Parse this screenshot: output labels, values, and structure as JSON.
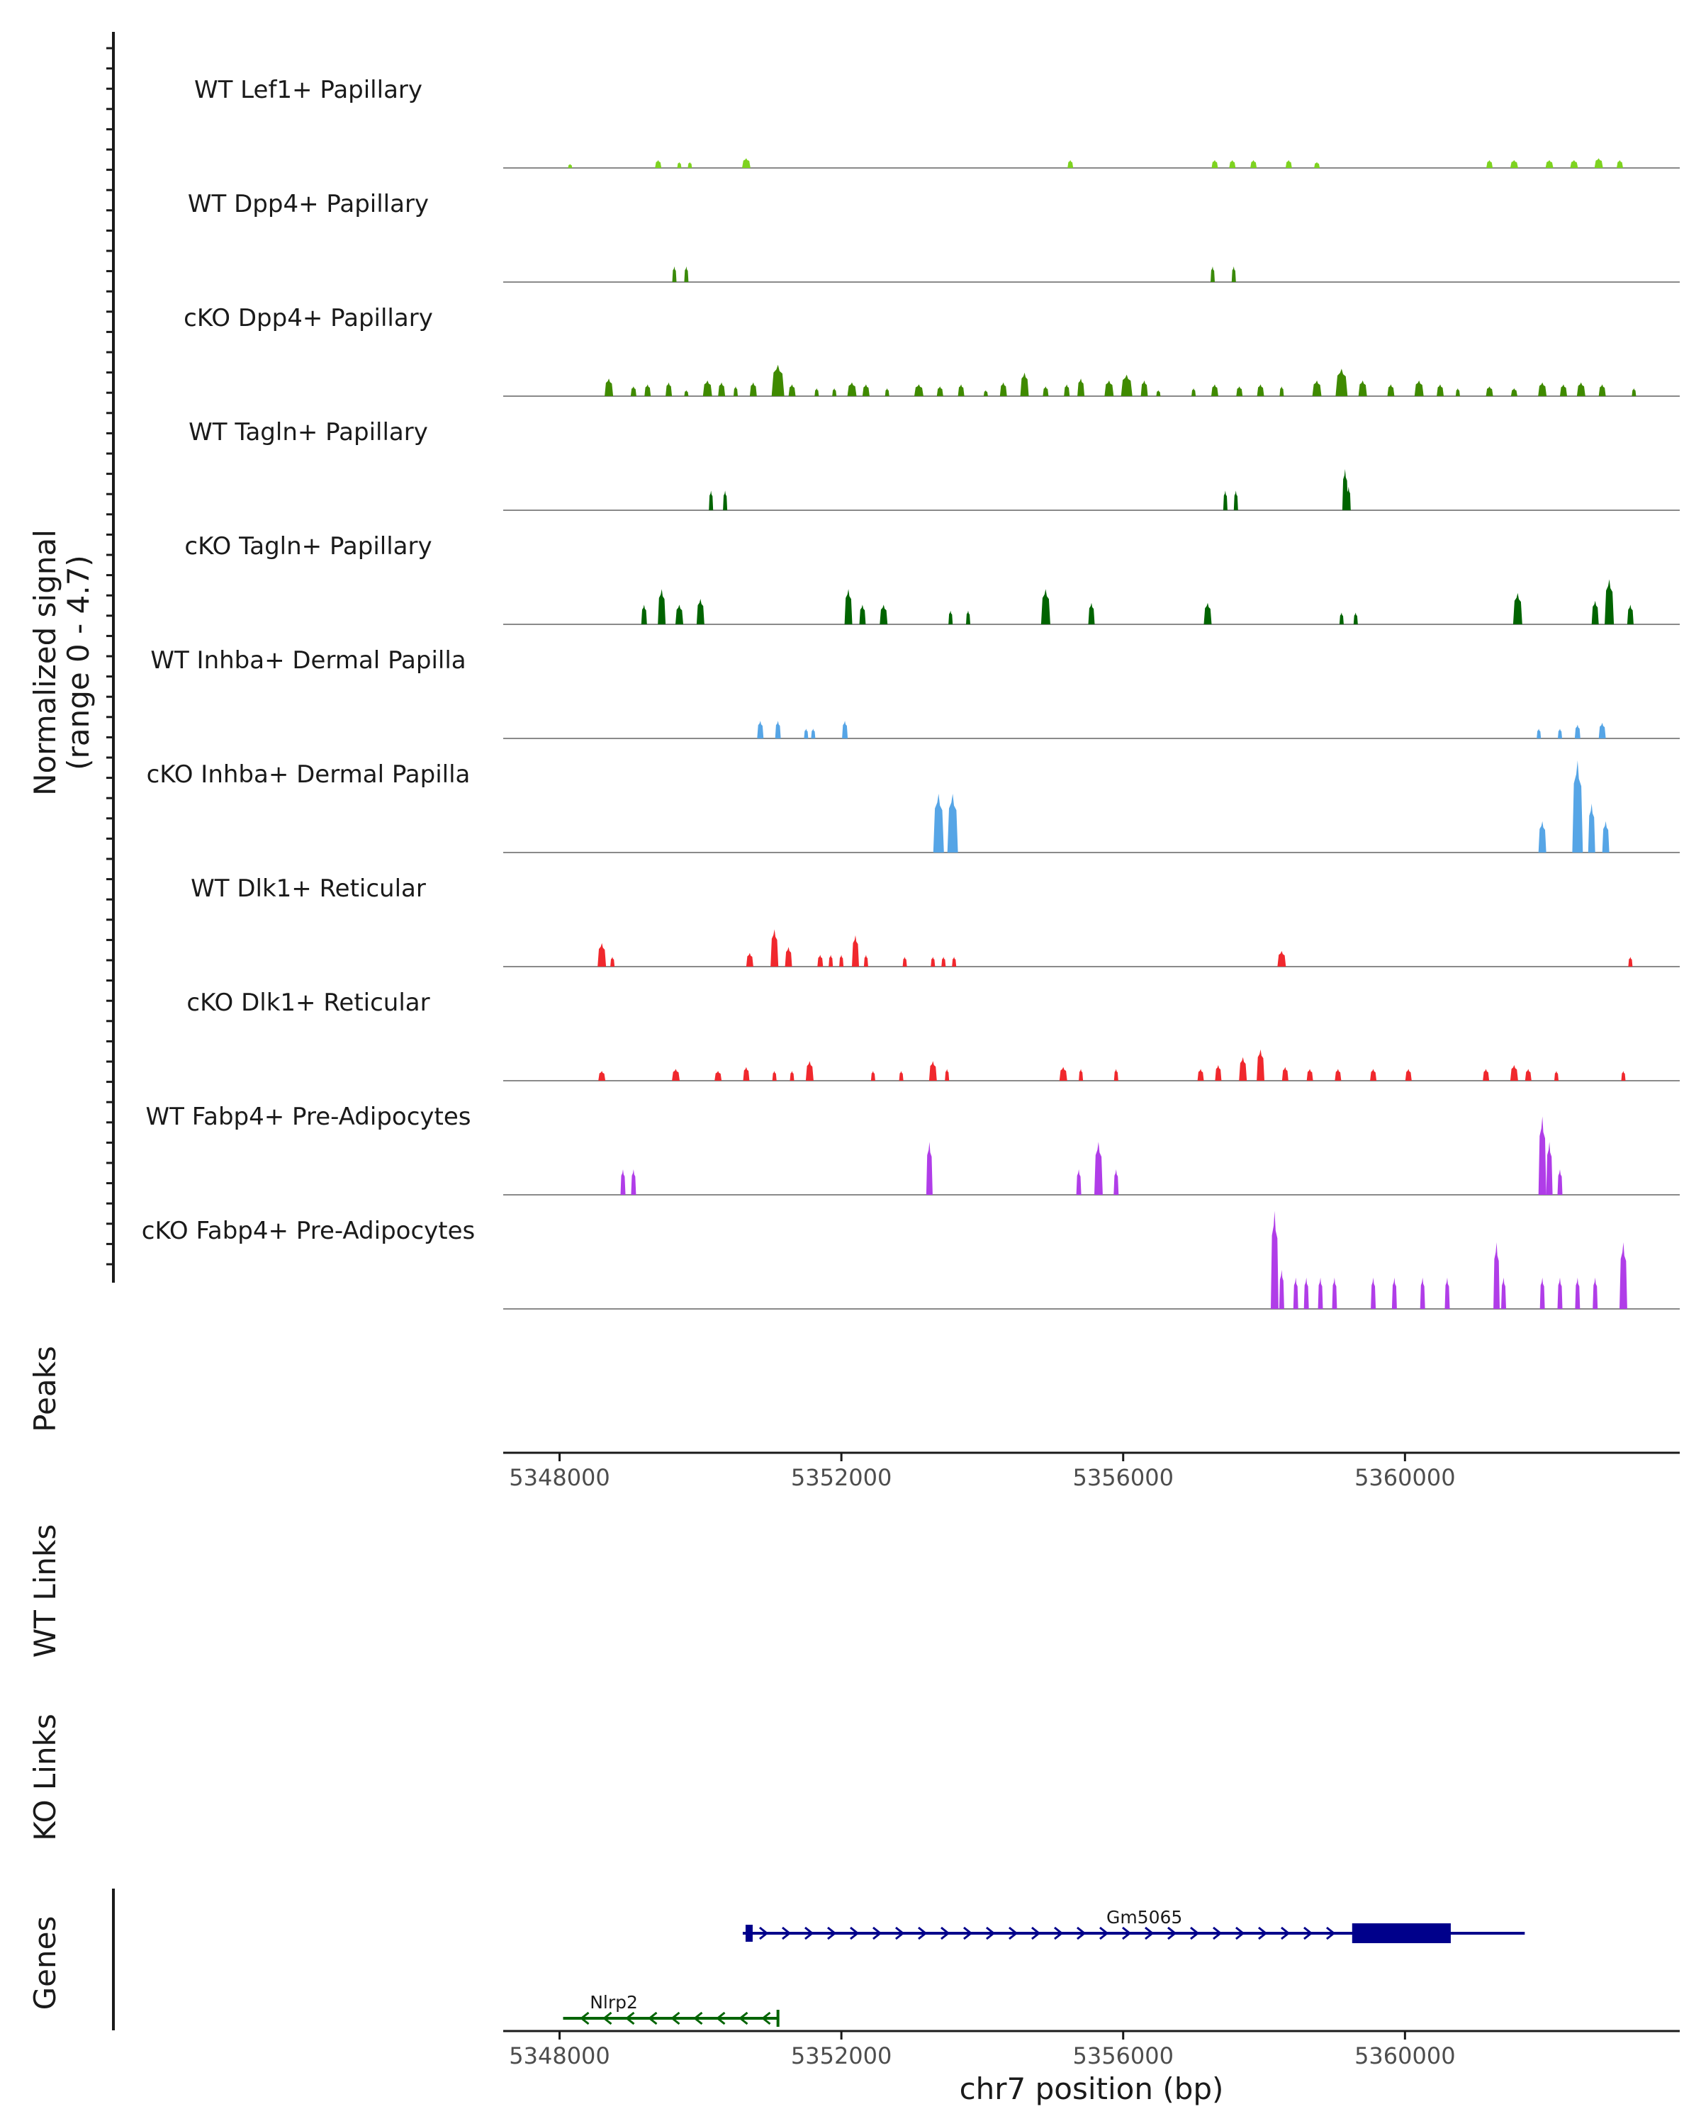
{
  "chart_data": {
    "type": "area",
    "title": "",
    "signal_axis": {
      "label_line1": "Normalized signal",
      "label_line2": "(range 0 - 4.7)",
      "ylim": [
        0,
        4.7
      ]
    },
    "xlim": [
      5347200,
      5363900
    ],
    "x_ticks": [
      5348000,
      5352000,
      5356000,
      5360000
    ],
    "x_tick_labels": [
      "5348000",
      "5352000",
      "5356000",
      "5360000"
    ],
    "xlabel": "chr7 position (bp)",
    "peaks_label": "Peaks",
    "wt_links_label": "WT Links",
    "ko_links_label": "KO Links",
    "genes_label": "Genes",
    "tracks": [
      {
        "name": "WT Lef1+ Papillary",
        "color": "#7ED321",
        "peaks": [
          [
            5348150,
            0.2,
            60
          ],
          [
            5349400,
            0.4,
            90
          ],
          [
            5349700,
            0.3,
            60
          ],
          [
            5349850,
            0.3,
            60
          ],
          [
            5350650,
            0.5,
            120
          ],
          [
            5355250,
            0.4,
            80
          ],
          [
            5357300,
            0.4,
            90
          ],
          [
            5357550,
            0.4,
            90
          ],
          [
            5357850,
            0.4,
            90
          ],
          [
            5358350,
            0.4,
            90
          ],
          [
            5358750,
            0.3,
            80
          ],
          [
            5361200,
            0.4,
            90
          ],
          [
            5361550,
            0.4,
            110
          ],
          [
            5362050,
            0.4,
            110
          ],
          [
            5362400,
            0.4,
            110
          ],
          [
            5362750,
            0.5,
            120
          ],
          [
            5363050,
            0.4,
            90
          ]
        ]
      },
      {
        "name": "WT Dpp4+ Papillary",
        "color": "#3A8A0A",
        "peaks": [
          [
            5349630,
            0.8,
            50
          ],
          [
            5349800,
            0.8,
            50
          ],
          [
            5357270,
            0.8,
            50
          ],
          [
            5357570,
            0.8,
            60
          ]
        ]
      },
      {
        "name": "cKO Dpp4+ Papillary",
        "color": "#3F8A00",
        "peaks": [
          [
            5348700,
            0.9,
            120
          ],
          [
            5349050,
            0.5,
            80
          ],
          [
            5349250,
            0.6,
            90
          ],
          [
            5349550,
            0.7,
            90
          ],
          [
            5349800,
            0.3,
            50
          ],
          [
            5350100,
            0.8,
            130
          ],
          [
            5350300,
            0.7,
            100
          ],
          [
            5350500,
            0.5,
            60
          ],
          [
            5350750,
            0.7,
            100
          ],
          [
            5351100,
            1.6,
            180
          ],
          [
            5351300,
            0.6,
            100
          ],
          [
            5351650,
            0.4,
            60
          ],
          [
            5351900,
            0.4,
            60
          ],
          [
            5352150,
            0.7,
            130
          ],
          [
            5352350,
            0.6,
            100
          ],
          [
            5352650,
            0.4,
            60
          ],
          [
            5353100,
            0.6,
            130
          ],
          [
            5353400,
            0.5,
            90
          ],
          [
            5353700,
            0.6,
            90
          ],
          [
            5354050,
            0.3,
            60
          ],
          [
            5354300,
            0.7,
            100
          ],
          [
            5354600,
            1.2,
            120
          ],
          [
            5354900,
            0.5,
            80
          ],
          [
            5355200,
            0.6,
            80
          ],
          [
            5355400,
            0.9,
            100
          ],
          [
            5355800,
            0.8,
            130
          ],
          [
            5356050,
            1.1,
            160
          ],
          [
            5356300,
            0.8,
            100
          ],
          [
            5356500,
            0.3,
            60
          ],
          [
            5357000,
            0.4,
            60
          ],
          [
            5357300,
            0.6,
            100
          ],
          [
            5357650,
            0.5,
            90
          ],
          [
            5357950,
            0.6,
            100
          ],
          [
            5358250,
            0.5,
            60
          ],
          [
            5358750,
            0.8,
            130
          ],
          [
            5359100,
            1.4,
            170
          ],
          [
            5359400,
            0.8,
            120
          ],
          [
            5359800,
            0.6,
            100
          ],
          [
            5360200,
            0.8,
            130
          ],
          [
            5360500,
            0.6,
            100
          ],
          [
            5360750,
            0.4,
            60
          ],
          [
            5361200,
            0.5,
            100
          ],
          [
            5361550,
            0.4,
            90
          ],
          [
            5361950,
            0.7,
            120
          ],
          [
            5362250,
            0.6,
            100
          ],
          [
            5362500,
            0.7,
            120
          ],
          [
            5362800,
            0.6,
            100
          ],
          [
            5363250,
            0.4,
            60
          ]
        ]
      },
      {
        "name": "WT Tagln+ Papillary",
        "color": "#006400",
        "peaks": [
          [
            5350150,
            1.0,
            60
          ],
          [
            5350350,
            1.0,
            60
          ],
          [
            5357450,
            1.0,
            60
          ],
          [
            5357600,
            1.0,
            60
          ],
          [
            5359150,
            2.1,
            80
          ],
          [
            5359200,
            1.2,
            60
          ]
        ]
      },
      {
        "name": "cKO Tagln+ Papillary",
        "color": "#006400",
        "peaks": [
          [
            5349200,
            1.0,
            80
          ],
          [
            5349450,
            1.8,
            110
          ],
          [
            5349700,
            1.0,
            110
          ],
          [
            5350000,
            1.3,
            110
          ],
          [
            5352100,
            1.8,
            110
          ],
          [
            5352300,
            1.0,
            90
          ],
          [
            5352600,
            1.0,
            110
          ],
          [
            5353550,
            0.7,
            60
          ],
          [
            5353800,
            0.7,
            60
          ],
          [
            5354900,
            1.8,
            130
          ],
          [
            5355550,
            1.1,
            90
          ],
          [
            5357200,
            1.1,
            110
          ],
          [
            5359100,
            0.6,
            60
          ],
          [
            5359300,
            0.6,
            60
          ],
          [
            5361600,
            1.6,
            130
          ],
          [
            5362700,
            1.2,
            100
          ],
          [
            5362900,
            2.3,
            130
          ],
          [
            5363200,
            1.0,
            90
          ]
        ]
      },
      {
        "name": "WT Inhba+ Dermal Papilla",
        "color": "#56A5E6",
        "peaks": [
          [
            5350850,
            0.9,
            90
          ],
          [
            5351100,
            0.9,
            80
          ],
          [
            5351500,
            0.5,
            60
          ],
          [
            5351600,
            0.5,
            60
          ],
          [
            5352050,
            0.9,
            80
          ],
          [
            5361900,
            0.5,
            60
          ],
          [
            5362200,
            0.5,
            60
          ],
          [
            5362450,
            0.7,
            80
          ],
          [
            5362800,
            0.8,
            100
          ]
        ]
      },
      {
        "name": "cKO Inhba+ Dermal Papilla",
        "color": "#56A5E6",
        "peaks": [
          [
            5353380,
            3.0,
            150
          ],
          [
            5353580,
            3.0,
            150
          ],
          [
            5361950,
            1.6,
            110
          ],
          [
            5362450,
            4.7,
            150
          ],
          [
            5362650,
            2.5,
            100
          ],
          [
            5362850,
            1.6,
            100
          ]
        ]
      },
      {
        "name": "WT Dlk1+ Reticular",
        "color": "#F0282D",
        "peaks": [
          [
            5348600,
            1.2,
            120
          ],
          [
            5348750,
            0.5,
            60
          ],
          [
            5350700,
            0.7,
            100
          ],
          [
            5351050,
            1.9,
            110
          ],
          [
            5351250,
            1.0,
            100
          ],
          [
            5351700,
            0.6,
            80
          ],
          [
            5351850,
            0.6,
            60
          ],
          [
            5352000,
            0.6,
            60
          ],
          [
            5352200,
            1.6,
            100
          ],
          [
            5352350,
            0.6,
            60
          ],
          [
            5352900,
            0.5,
            60
          ],
          [
            5353300,
            0.5,
            60
          ],
          [
            5353450,
            0.5,
            60
          ],
          [
            5353600,
            0.5,
            60
          ],
          [
            5358250,
            0.8,
            120
          ],
          [
            5363200,
            0.5,
            60
          ]
        ]
      },
      {
        "name": "cKO Dlk1+ Reticular",
        "color": "#F0282D",
        "peaks": [
          [
            5348600,
            0.5,
            100
          ],
          [
            5349650,
            0.6,
            110
          ],
          [
            5350250,
            0.5,
            100
          ],
          [
            5350650,
            0.7,
            90
          ],
          [
            5351050,
            0.5,
            60
          ],
          [
            5351300,
            0.5,
            60
          ],
          [
            5351550,
            1.0,
            110
          ],
          [
            5352450,
            0.5,
            60
          ],
          [
            5352850,
            0.5,
            60
          ],
          [
            5353300,
            1.0,
            110
          ],
          [
            5353500,
            0.6,
            60
          ],
          [
            5355150,
            0.7,
            110
          ],
          [
            5355400,
            0.6,
            60
          ],
          [
            5355900,
            0.6,
            60
          ],
          [
            5357100,
            0.6,
            90
          ],
          [
            5357350,
            0.8,
            90
          ],
          [
            5357700,
            1.2,
            110
          ],
          [
            5357950,
            1.6,
            110
          ],
          [
            5358300,
            0.7,
            90
          ],
          [
            5358650,
            0.6,
            90
          ],
          [
            5359050,
            0.6,
            90
          ],
          [
            5359550,
            0.6,
            90
          ],
          [
            5360050,
            0.6,
            90
          ],
          [
            5361150,
            0.6,
            90
          ],
          [
            5361550,
            0.8,
            110
          ],
          [
            5361750,
            0.6,
            90
          ],
          [
            5362150,
            0.5,
            60
          ],
          [
            5363100,
            0.5,
            60
          ]
        ]
      },
      {
        "name": "WT Fabp4+ Pre-Adipocytes",
        "color": "#B03DE8",
        "peaks": [
          [
            5348900,
            1.3,
            70
          ],
          [
            5349050,
            1.3,
            70
          ],
          [
            5353250,
            2.7,
            90
          ],
          [
            5355370,
            1.3,
            70
          ],
          [
            5355650,
            2.7,
            120
          ],
          [
            5355900,
            1.3,
            70
          ],
          [
            5361950,
            4.0,
            110
          ],
          [
            5362050,
            2.7,
            90
          ],
          [
            5362200,
            1.3,
            70
          ]
        ]
      },
      {
        "name": "cKO Fabp4+ Pre-Adipocytes",
        "color": "#B03DE8",
        "peaks": [
          [
            5358150,
            5.0,
            110
          ],
          [
            5358250,
            2.0,
            70
          ],
          [
            5358450,
            1.6,
            70
          ],
          [
            5358600,
            1.6,
            70
          ],
          [
            5358800,
            1.6,
            70
          ],
          [
            5359000,
            1.6,
            70
          ],
          [
            5359550,
            1.6,
            70
          ],
          [
            5359850,
            1.6,
            70
          ],
          [
            5360250,
            1.6,
            70
          ],
          [
            5360600,
            1.6,
            70
          ],
          [
            5361300,
            3.4,
            90
          ],
          [
            5361400,
            1.6,
            70
          ],
          [
            5361950,
            1.6,
            70
          ],
          [
            5362200,
            1.6,
            70
          ],
          [
            5362450,
            1.6,
            70
          ],
          [
            5362700,
            1.6,
            70
          ],
          [
            5363100,
            3.4,
            110
          ]
        ]
      }
    ],
    "genes": [
      {
        "name": "Gm5065",
        "start": 5350600,
        "end": 5361700,
        "strand": "+",
        "color": "#00008B",
        "thick_start": 5359250,
        "thick_end": 5360650
      },
      {
        "name": "Nlrp2",
        "start": 5348050,
        "end": 5351100,
        "strand": "-",
        "color": "#006400"
      }
    ]
  }
}
